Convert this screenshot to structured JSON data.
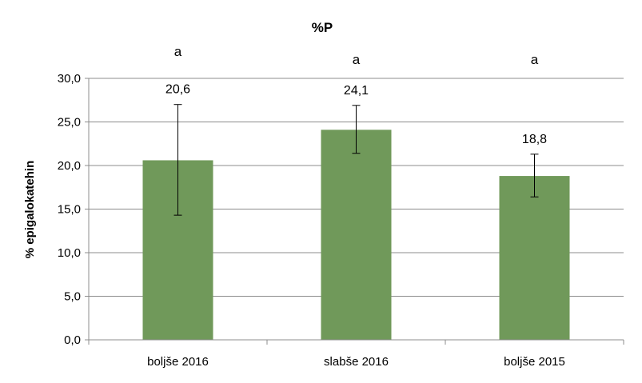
{
  "chart_data": {
    "type": "bar",
    "title": "%P",
    "xlabel": "",
    "ylabel": "% epigalokatehin",
    "categories": [
      "boljše 2016",
      "slabše 2016",
      "boljše 2015"
    ],
    "values": [
      20.6,
      24.1,
      18.8
    ],
    "value_labels": [
      "20,6",
      "24,1",
      "18,8"
    ],
    "error_bars": [
      [
        14.3,
        27.0
      ],
      [
        21.4,
        26.9
      ],
      [
        16.4,
        21.3
      ]
    ],
    "significance_letters": [
      "a",
      "a",
      "a"
    ],
    "ylim": [
      0,
      30
    ],
    "yticks": [
      0,
      5,
      10,
      15,
      20,
      25,
      30
    ],
    "ytick_labels": [
      "0,0",
      "5,0",
      "10,0",
      "15,0",
      "20,0",
      "25,0",
      "30,0"
    ],
    "grid": true,
    "bar_color": "#70995a"
  }
}
